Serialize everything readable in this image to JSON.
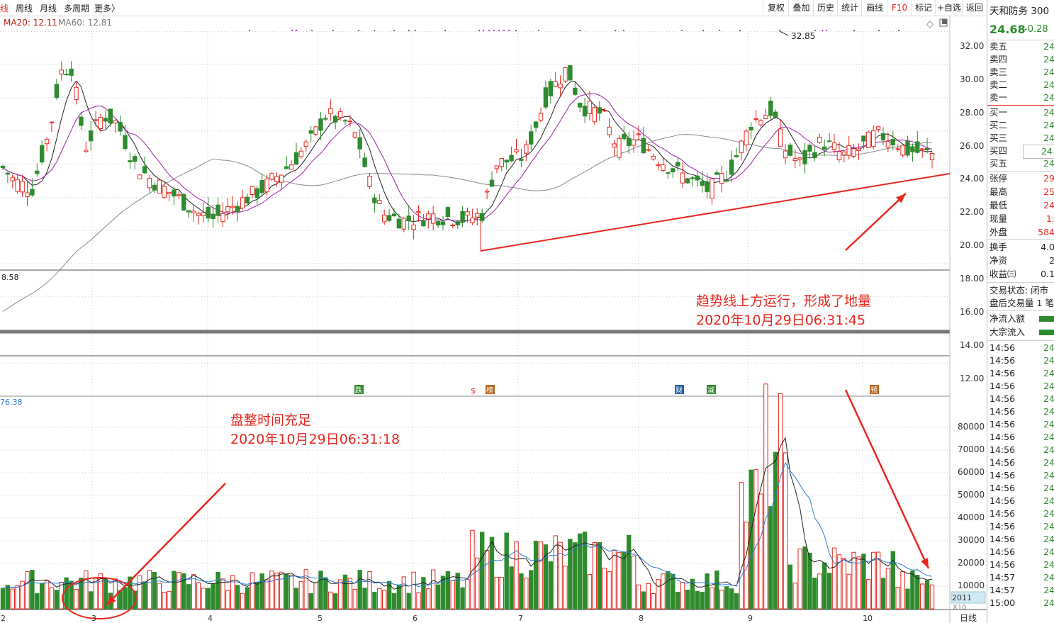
{
  "toolbar": {
    "left_tabs": [
      "线",
      "周线",
      "月线",
      "多周期",
      "更多〉"
    ],
    "right_buttons": [
      "复权",
      "叠加",
      "历史",
      "统计",
      "画线",
      "F10",
      "标记",
      "+自选",
      "返回"
    ]
  },
  "chart_legend": {
    "ma20": "MA20: 12.11",
    "ma60": "MA60: 12.81"
  },
  "price_axis": {
    "labels": [
      "32.00",
      "30.00",
      "28.00",
      "26.00",
      "24.00",
      "22.00",
      "20.00",
      "18.00",
      "16.00",
      "14.00",
      "12.00"
    ],
    "values": [
      32,
      30,
      28,
      26,
      24,
      22,
      20,
      18,
      16,
      14,
      12
    ]
  },
  "price_high_label": "32.85",
  "price_low_label": "8.58",
  "volume_top_label": "76.38",
  "volume_axis": {
    "labels": [
      "80000",
      "70000",
      "60000",
      "50000",
      "40000",
      "30000",
      "20000",
      "10000"
    ],
    "values": [
      80000,
      70000,
      60000,
      50000,
      40000,
      30000,
      20000,
      10000
    ]
  },
  "volume_box": {
    "value": "2011",
    "unit": "X10"
  },
  "x_axis": {
    "labels": [
      "2",
      "3",
      "4",
      "5",
      "6",
      "7",
      "8",
      "9",
      "10"
    ],
    "period": "日线"
  },
  "event_markers": [
    "跌",
    "$",
    "榜",
    "财",
    "减",
    "预"
  ],
  "annotations": {
    "trend_line1": "趋势线上方运行，形成了地量",
    "trend_line2": "2020年10月29日06:31:45",
    "consolidate_line1": "盘整时间充足",
    "consolidate_line2": "2020年10月29日06:31:18"
  },
  "colors": {
    "up": "#e8271f",
    "down": "#2e8b2e",
    "ma5": "#222222",
    "ma10": "#9b1fa8",
    "ma60": "#8a8a8a",
    "vol_ma10": "#2b7bd6",
    "annotation": "#e8271f"
  },
  "sidebar": {
    "stock_name": "天和防务 300",
    "price": "24.68",
    "change": "-0.28",
    "asks": [
      {
        "label": "卖五",
        "value": "24"
      },
      {
        "label": "卖四",
        "value": "24"
      },
      {
        "label": "卖三",
        "value": "24"
      },
      {
        "label": "卖二",
        "value": "24"
      },
      {
        "label": "卖一",
        "value": "24"
      }
    ],
    "bids": [
      {
        "label": "买一",
        "value": "24"
      },
      {
        "label": "买二",
        "value": "24"
      },
      {
        "label": "买三",
        "value": "24"
      },
      {
        "label": "买四",
        "value": "24"
      },
      {
        "label": "买五",
        "value": "24"
      }
    ],
    "stats1": [
      {
        "label": "张停",
        "value": "29"
      },
      {
        "label": "最高",
        "value": "25"
      },
      {
        "label": "最低",
        "value": "24"
      },
      {
        "label": "现量",
        "value": "1:"
      },
      {
        "label": "外盘",
        "value": "584"
      }
    ],
    "stats2": [
      {
        "label": "换手",
        "value": "4.0"
      },
      {
        "label": "净资",
        "value": "2"
      },
      {
        "label": "收益㈢",
        "value": "0.1"
      }
    ],
    "trade_status": "交易状态: 闭市",
    "after_hours": "盘后交易量 1 笔",
    "net_inflow": "净流入额",
    "block_inflow": "大宗流入",
    "ticks": [
      {
        "time": "14:56",
        "price": "24"
      },
      {
        "time": "14:56",
        "price": "24"
      },
      {
        "time": "14:56",
        "price": "24"
      },
      {
        "time": "14:56",
        "price": "24"
      },
      {
        "time": "14:56",
        "price": "24"
      },
      {
        "time": "14:56",
        "price": "24"
      },
      {
        "time": "14:56",
        "price": "24"
      },
      {
        "time": "14:56",
        "price": "24"
      },
      {
        "time": "14:56",
        "price": "24"
      },
      {
        "time": "14:56",
        "price": "24"
      },
      {
        "time": "14:56",
        "price": "24"
      },
      {
        "time": "14:56",
        "price": "24"
      },
      {
        "time": "14:56",
        "price": "24"
      },
      {
        "time": "14:56",
        "price": "24"
      },
      {
        "time": "14:56",
        "price": "24"
      },
      {
        "time": "14:56",
        "price": "24"
      },
      {
        "time": "14:56",
        "price": "24"
      },
      {
        "time": "14:56",
        "price": "24"
      },
      {
        "time": "14:57",
        "price": "24"
      },
      {
        "time": "14:57",
        "price": "24"
      },
      {
        "time": "15:00",
        "price": "24"
      }
    ]
  }
}
